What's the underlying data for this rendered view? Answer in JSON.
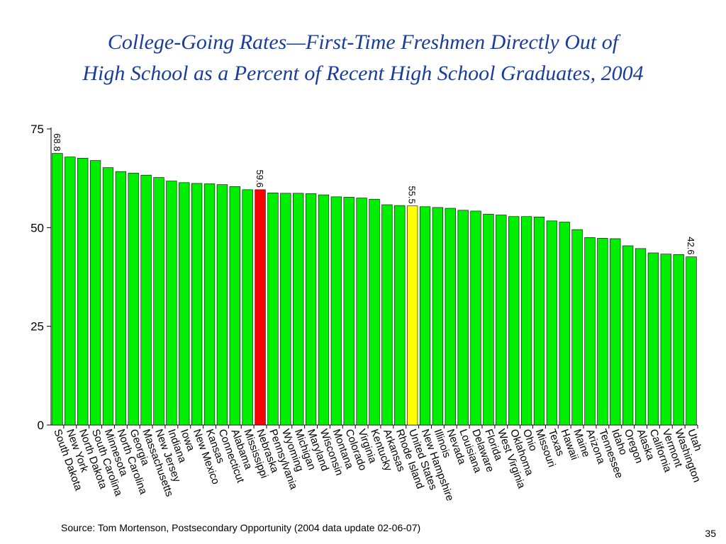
{
  "slide": {
    "title_line1": "College-Going Rates—First-Time Freshmen Directly Out of",
    "title_line2": "High School as a Percent of Recent High School Graduates, 2004",
    "source": "Source:  Tom Mortenson, Postsecondary Opportunity (2004 data update 02-06-07)",
    "page_number": "35"
  },
  "chart_data": {
    "type": "bar",
    "title": "College-Going Rates—First-Time Freshmen Directly Out of High School as a Percent of Recent High School Graduates, 2004",
    "xlabel": "",
    "ylabel": "",
    "ylim": [
      0,
      75
    ],
    "yticks": [
      0,
      25,
      50,
      75
    ],
    "grid": false,
    "legend": "none",
    "categories": [
      "South Dakota",
      "New York",
      "North Dakota",
      "South Carolina",
      "Minnesota",
      "North Carolina",
      "Georgia",
      "Massachusetts",
      "New Jersey",
      "Indiana",
      "Iowa",
      "New Mexico",
      "Kansas",
      "Connecticut",
      "Alabama",
      "Mississippi",
      "Nebraska",
      "Pennsylvania",
      "Wyoming",
      "Michigan",
      "Maryland",
      "Wisconsin",
      "Montana",
      "Colorado",
      "Virginia",
      "Kentucky",
      "Arkansas",
      "Rhode Island",
      "United States",
      "New Hampshire",
      "Illinois",
      "Nevada",
      "Louisiana",
      "Delaware",
      "Florida",
      "West Virginia",
      "Oklahoma",
      "Ohio",
      "Missouri",
      "Texas",
      "Hawaii",
      "Maine",
      "Arizona",
      "Tennessee",
      "Idaho",
      "Oregon",
      "Alaska",
      "California",
      "Vermont",
      "Washington",
      "Utah"
    ],
    "values": [
      68.8,
      67.9,
      67.6,
      67.0,
      65.2,
      64.2,
      63.8,
      63.3,
      62.7,
      61.8,
      61.4,
      61.2,
      61.1,
      60.9,
      60.4,
      59.6,
      59.6,
      58.8,
      58.7,
      58.7,
      58.6,
      58.3,
      57.8,
      57.7,
      57.5,
      57.2,
      55.8,
      55.6,
      55.5,
      55.3,
      55.1,
      54.9,
      54.4,
      54.2,
      53.4,
      53.2,
      52.8,
      52.8,
      52.7,
      51.7,
      51.4,
      49.5,
      47.5,
      47.3,
      47.2,
      45.4,
      44.7,
      43.6,
      43.3,
      43.2,
      42.6
    ],
    "bar_colors": {
      "default": "#00ee00",
      "highlight_red": "#ff0000",
      "highlight_yellow": "#ffff00",
      "outline": "#000000"
    },
    "highlights": [
      {
        "category": "Nebraska",
        "color": "red"
      },
      {
        "category": "United States",
        "color": "yellow"
      }
    ],
    "data_labels": [
      {
        "category": "South Dakota",
        "text": "68.8"
      },
      {
        "category": "Nebraska",
        "text": "59.6"
      },
      {
        "category": "United States",
        "text": "55.5"
      },
      {
        "category": "Utah",
        "text": "42.6"
      }
    ]
  }
}
